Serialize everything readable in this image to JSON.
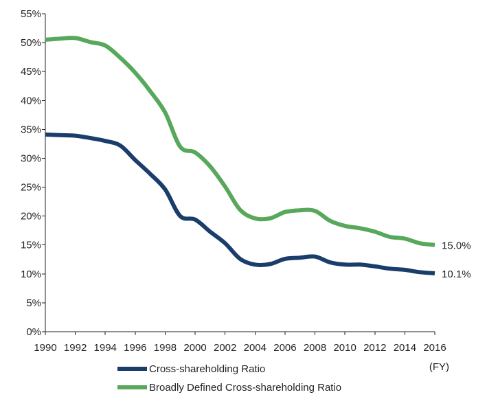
{
  "chart_data": {
    "type": "line",
    "title": "",
    "xlabel": "",
    "ylabel": "",
    "x_unit_label": "(FY)",
    "grid": false,
    "legend_position": "bottom-left",
    "xlim": [
      1990,
      2016
    ],
    "ylim": [
      0,
      55
    ],
    "x_ticks": [
      1990,
      1992,
      1994,
      1996,
      1998,
      2000,
      2002,
      2004,
      2006,
      2008,
      2010,
      2012,
      2014,
      2016
    ],
    "x_tick_labels": [
      "1990",
      "1992",
      "1994",
      "1996",
      "1998",
      "2000",
      "2002",
      "2004",
      "2006",
      "2008",
      "2010",
      "2012",
      "2014",
      "2016"
    ],
    "y_ticks": [
      0,
      5,
      10,
      15,
      20,
      25,
      30,
      35,
      40,
      45,
      50,
      55
    ],
    "y_tick_labels": [
      "0%",
      "5%",
      "10%",
      "15%",
      "20%",
      "25%",
      "30%",
      "35%",
      "40%",
      "45%",
      "50%",
      "55%"
    ],
    "x": [
      1990,
      1991,
      1992,
      1993,
      1994,
      1995,
      1996,
      1997,
      1998,
      1999,
      2000,
      2001,
      2002,
      2003,
      2004,
      2005,
      2006,
      2007,
      2008,
      2009,
      2010,
      2011,
      2012,
      2013,
      2014,
      2015,
      2016
    ],
    "series": [
      {
        "name": "Broadly Defined Cross-shareholding Ratio",
        "color": "#58a85c",
        "values": [
          50.5,
          50.7,
          50.8,
          50.1,
          49.5,
          47.4,
          44.8,
          41.6,
          37.9,
          32.0,
          31.0,
          28.6,
          25.1,
          21.1,
          19.6,
          19.6,
          20.7,
          21.0,
          20.9,
          19.2,
          18.3,
          17.9,
          17.3,
          16.4,
          16.1,
          15.3,
          15.0
        ],
        "end_label": "15.0%"
      },
      {
        "name": "Cross-shareholding Ratio",
        "color": "#1a3d6b",
        "values": [
          34.1,
          34.0,
          33.9,
          33.5,
          33.0,
          32.2,
          29.7,
          27.3,
          24.6,
          20.0,
          19.4,
          17.3,
          15.3,
          12.6,
          11.6,
          11.7,
          12.6,
          12.8,
          13.0,
          12.0,
          11.6,
          11.6,
          11.3,
          10.9,
          10.7,
          10.3,
          10.1
        ],
        "end_label": "10.1%"
      }
    ]
  }
}
